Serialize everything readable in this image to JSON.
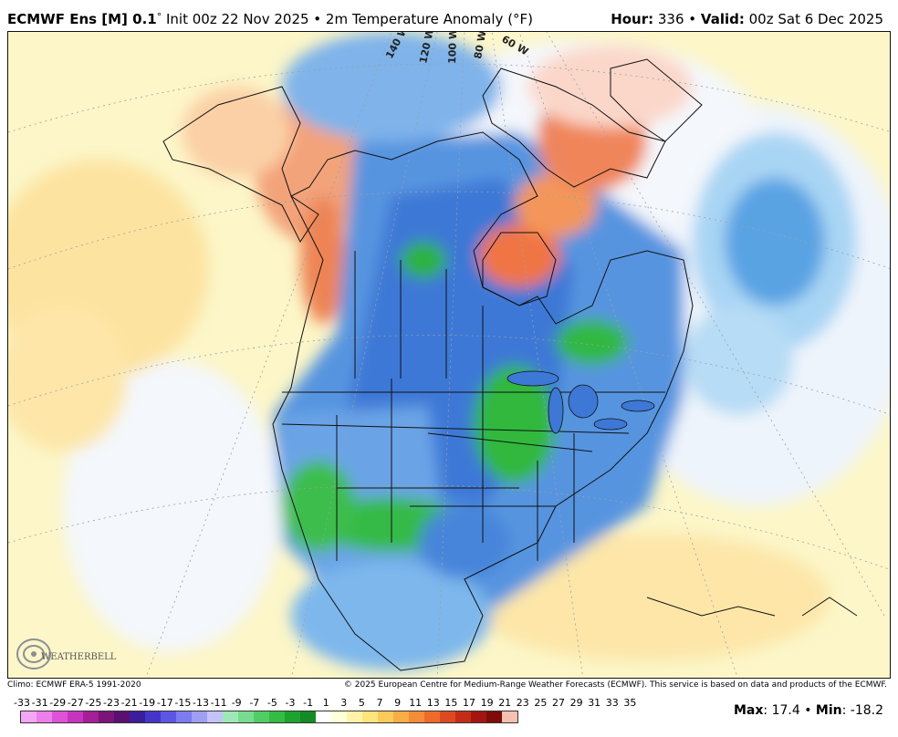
{
  "header": {
    "model": "ECMWF Ens [M] 0.1",
    "deg": "°",
    "init": " Init 00z 22 Nov 2025 • 2m Temperature Anomaly (°F)",
    "hour_label": "Hour:",
    "hour_value": " 336 • ",
    "valid_label": "Valid:",
    "valid_value": " 00z Sat 6 Dec 2025"
  },
  "map": {
    "lon_labels": [
      "140 W",
      "120 W",
      "100 W",
      "80 W",
      "60 W"
    ],
    "logo_text": "WEATHERBELL"
  },
  "footer": {
    "climo": "Climo: ECMWF ERA-5 1991-2020",
    "copyright": "© 2025 European Centre for Medium-Range Weather Forecasts (ECMWF). This service is based on data and products of the ECMWF."
  },
  "colorbar": {
    "labels": [
      "-33",
      "-31",
      "-29",
      "-27",
      "-25",
      "-23",
      "-21",
      "-19",
      "-17",
      "-15",
      "-13",
      "-11",
      "-9",
      "-7",
      "-5",
      "-3",
      "-1",
      "1",
      "3",
      "5",
      "7",
      "9",
      "11",
      "13",
      "15",
      "17",
      "19",
      "21",
      "23",
      "25",
      "27",
      "29",
      "31",
      "33",
      "35"
    ],
    "colors": [
      "#f7a6f5",
      "#ee7ee9",
      "#e052d9",
      "#c735c0",
      "#a41f98",
      "#7c1579",
      "#5a0f72",
      "#3c1d9c",
      "#4536c9",
      "#5c57e3",
      "#7c7cf0",
      "#9e9ef5",
      "#c3c3f8",
      "#9ee8b8",
      "#77dc8e",
      "#52cd66",
      "#34bc44",
      "#1ea32e",
      "#168a24",
      "#2d9ad8",
      "#5db7ea",
      "#8fd3f6",
      "#c5e9fb",
      "#ffffff",
      "#ffffd9",
      "#fff3a8",
      "#fde47b",
      "#fbcb5a",
      "#f9ad45",
      "#f58c37",
      "#ee6b2c",
      "#dd4a22",
      "#c32d18",
      "#a3160f",
      "#7e0c08",
      "#f5c1b0",
      "#eea890",
      "#e48c78",
      "#d86d62",
      "#c9524f",
      "#b23d3d",
      "#972b2d",
      "#7d1c1f",
      "#5f1214"
    ],
    "max_label": "Max",
    "max_value": ": 17.4 • ",
    "min_label": "Min",
    "min_value": ": -18.2"
  }
}
